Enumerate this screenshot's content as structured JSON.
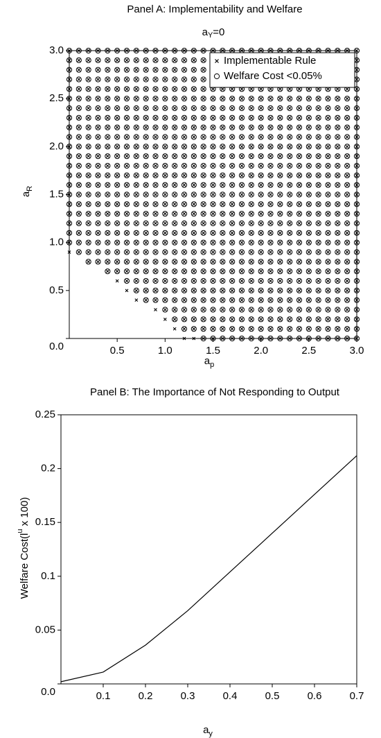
{
  "chart_data": [
    {
      "type": "grid-scatter",
      "title": "Panel A: Implementability and Welfare",
      "subtitle": [
        "a",
        "Y",
        "=0"
      ],
      "xlabel": [
        "a",
        "p"
      ],
      "ylabel": [
        "a",
        "R"
      ],
      "x": [
        0.0,
        0.1,
        0.2,
        0.3,
        0.4,
        0.5,
        0.6,
        0.7,
        0.8,
        0.9,
        1.0,
        1.1,
        1.2,
        1.3,
        1.4,
        1.5,
        1.6,
        1.7,
        1.8,
        1.9,
        2.0,
        2.1,
        2.2,
        2.3,
        2.4,
        2.5,
        2.6,
        2.7,
        2.8,
        2.9,
        3.0
      ],
      "y": [
        0.0,
        0.1,
        0.2,
        0.3,
        0.4,
        0.5,
        0.6,
        0.7,
        0.8,
        0.9,
        1.0,
        1.1,
        1.2,
        1.3,
        1.4,
        1.5,
        1.6,
        1.7,
        1.8,
        1.9,
        2.0,
        2.1,
        2.2,
        2.3,
        2.4,
        2.5,
        2.6,
        2.7,
        2.8,
        2.9,
        3.0
      ],
      "series": [
        {
          "name": "Implementable Rule",
          "marker": "x",
          "color": "#000000",
          "min_x_by_row": [
            1.2,
            1.1,
            1.0,
            0.9,
            0.7,
            0.6,
            0.5,
            0.4,
            0.2,
            0.0,
            0.0,
            0.0,
            0.0,
            0.0,
            0.0,
            0.0,
            0.0,
            0.0,
            0.0,
            0.0,
            0.0,
            0.0,
            0.0,
            0.0,
            0.0,
            0.0,
            0.0,
            0.0,
            0.0,
            0.0,
            0.0
          ]
        },
        {
          "name": "Welfare Cost <0.05%",
          "marker": "o",
          "color": "#000000",
          "min_x_by_row": [
            1.4,
            1.2,
            1.1,
            1.0,
            0.8,
            0.7,
            0.6,
            0.4,
            0.2,
            0.1,
            0.0,
            0.0,
            0.0,
            0.0,
            0.0,
            0.0,
            0.0,
            0.0,
            0.0,
            0.0,
            0.0,
            0.0,
            0.0,
            0.0,
            0.0,
            0.0,
            0.0,
            0.0,
            0.0,
            0.0,
            0.0
          ]
        }
      ],
      "xlim": [
        0,
        3.0
      ],
      "ylim": [
        0,
        3.0
      ],
      "xticks": [
        0.5,
        {
          "value": 1.0,
          "label": "1.0"
        },
        1.5,
        {
          "value": 2.0,
          "label": "2.0"
        },
        2.5,
        {
          "value": 3.0,
          "label": "3.0"
        }
      ],
      "yticks": [
        {
          "value": 0,
          "label": "0.0"
        },
        0.5,
        {
          "value": 1.0,
          "label": "1.0"
        },
        1.5,
        {
          "value": 2.0,
          "label": "2.0"
        },
        2.5,
        {
          "value": 3.0,
          "label": "3.0"
        }
      ],
      "legend": "upper right",
      "grid": false
    },
    {
      "type": "line",
      "title": "Panel B: The Importance of Not Responding to Output",
      "xlabel": [
        "a",
        "y"
      ],
      "ylabel": [
        "Welfare Cost(l",
        "u",
        " x 100)"
      ],
      "x": [
        0.0,
        0.1,
        0.2,
        0.3,
        0.4,
        0.5,
        0.6,
        0.7
      ],
      "values": [
        0.002,
        0.011,
        0.036,
        0.068,
        0.104,
        0.14,
        0.176,
        0.212
      ],
      "color": "#000000",
      "xlim": [
        0,
        0.7
      ],
      "ylim": [
        0,
        0.25
      ],
      "xticks": [
        0.1,
        0.2,
        0.3,
        0.4,
        0.5,
        0.6,
        0.7
      ],
      "yticks": [
        {
          "value": 0,
          "label": "0.0"
        },
        0.05,
        0.1,
        0.15,
        0.2,
        0.25
      ],
      "grid": false
    }
  ]
}
